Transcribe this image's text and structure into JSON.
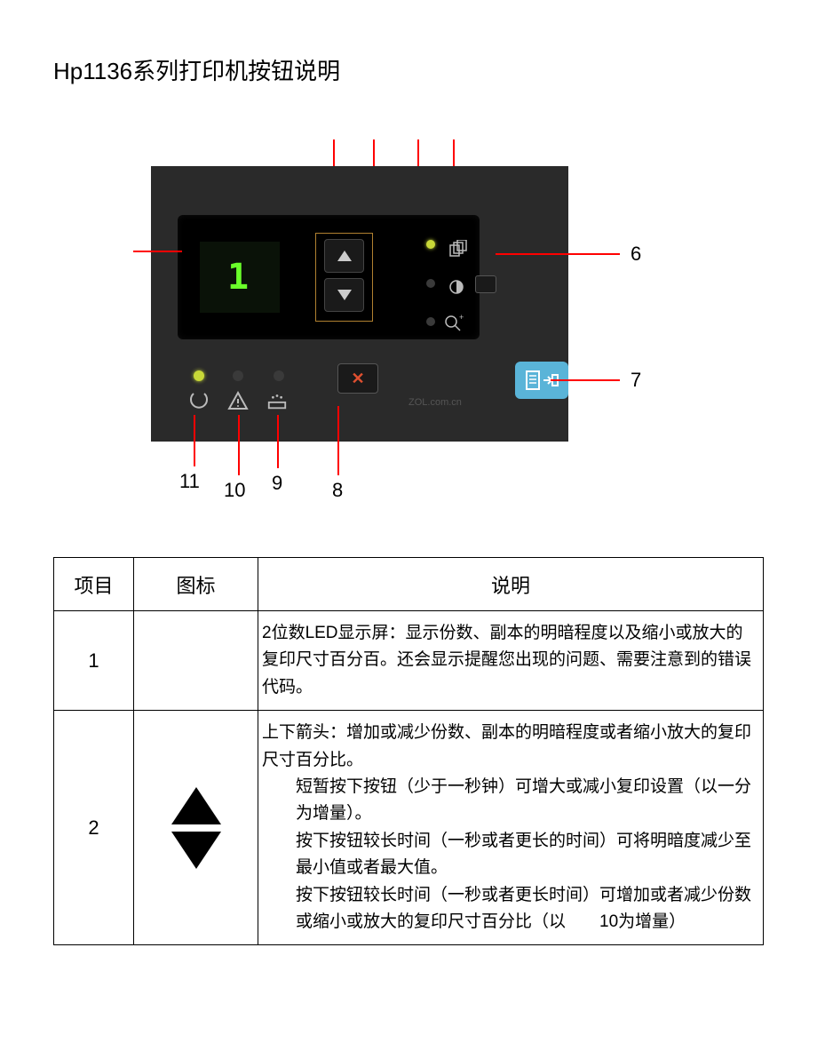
{
  "title": "Hp1136系列打印机按钮说明",
  "diagram": {
    "lcd_value": "1",
    "panel_bg": "#2a2a2a",
    "display_bg": "#000000",
    "lcd_bg": "#0a1208",
    "lcd_color": "#6aff2a",
    "arrow_border": "#b08030",
    "btn_bg": "#1a1a1a",
    "copy_btn_bg": "#5ab4d8",
    "cancel_color": "#e05030",
    "led_yellow": "#c8d838",
    "led_dark": "#3a3a3a",
    "callout_color": "#ff0000",
    "watermark": "ZOL.com.cn",
    "callouts": {
      "right_6": "6",
      "right_7": "7",
      "bottom_8": "8",
      "bottom_9": "9",
      "bottom_10": "10",
      "bottom_11": "11"
    }
  },
  "table": {
    "headers": {
      "item": "项目",
      "icon": "图标",
      "desc": "说明"
    },
    "rows": [
      {
        "item": "1",
        "icon_type": "none",
        "desc_lines": [
          "2位数LED显示屏：显示份数、副本的明暗程度以及缩小或放大的复印尺寸百分百。还会显示提醒您出现的问题、需要注意到的错误代码。"
        ]
      },
      {
        "item": "2",
        "icon_type": "up_down_arrows",
        "desc_lines": [
          "上下箭头：增加或减少份数、副本的明暗程度或者缩小放大的复印尺寸百分比。",
          "INDENT:短暂按下按钮（少于一秒钟）可增大或减小复印设置（以一分为增量）。",
          "INDENT:按下按钮较长时间（一秒或者更长的时间）可将明暗度减少至最小值或者最大值。",
          "INDENT:按下按钮较长时间（一秒或者更长时间）可增加或者减少份数或缩小或放大的复印尺寸百分比（以　　10为增量）"
        ]
      }
    ]
  }
}
